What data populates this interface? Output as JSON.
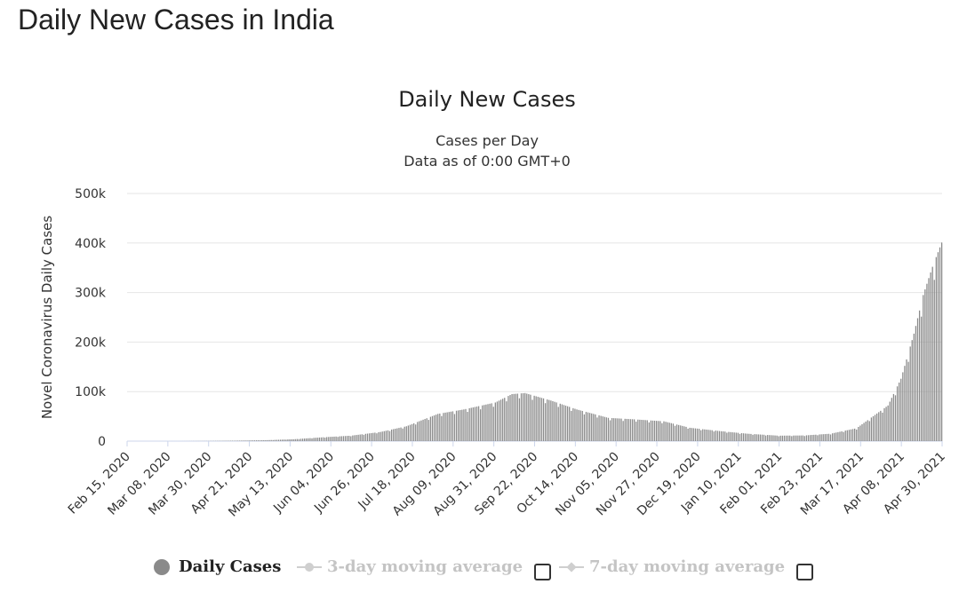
{
  "page_title": "Daily New Cases in India",
  "legend": {
    "daily": "Daily Cases",
    "ma3": "3-day moving average",
    "ma7": "7-day moving average"
  },
  "colors": {
    "bar": "#8a8a8a",
    "grid": "#e6e6e6",
    "muted": "#c4c4c4"
  },
  "chart_data": {
    "type": "bar",
    "title": "Daily New Cases",
    "subtitle": [
      "Cases per Day",
      "Data as of 0:00 GMT+0"
    ],
    "ylabel": "Novel Coronavirus Daily Cases",
    "xlabel": "",
    "ylim": [
      0,
      500000
    ],
    "y_ticks": [
      {
        "value": 0,
        "label": "0"
      },
      {
        "value": 100000,
        "label": "100k"
      },
      {
        "value": 200000,
        "label": "200k"
      },
      {
        "value": 300000,
        "label": "300k"
      },
      {
        "value": 400000,
        "label": "400k"
      },
      {
        "value": 500000,
        "label": "500k"
      }
    ],
    "x_range": [
      "2020-02-15",
      "2021-04-30"
    ],
    "x_ticks": [
      "Feb 15, 2020",
      "Mar 08, 2020",
      "Mar 30, 2020",
      "Apr 21, 2020",
      "May 13, 2020",
      "Jun 04, 2020",
      "Jun 26, 2020",
      "Jul 18, 2020",
      "Aug 09, 2020",
      "Aug 31, 2020",
      "Sep 22, 2020",
      "Oct 14, 2020",
      "Nov 05, 2020",
      "Nov 27, 2020",
      "Dec 19, 2020",
      "Jan 10, 2021",
      "Feb 01, 2021",
      "Feb 23, 2021",
      "Mar 17, 2021",
      "Apr 08, 2021",
      "Apr 30, 2021"
    ],
    "grid": true,
    "legend_position": "bottom",
    "series": [
      {
        "name": "Daily Cases",
        "points": [
          [
            "2020-02-15",
            0
          ],
          [
            "2020-03-01",
            0
          ],
          [
            "2020-03-15",
            50
          ],
          [
            "2020-04-01",
            400
          ],
          [
            "2020-04-15",
            1000
          ],
          [
            "2020-05-01",
            2000
          ],
          [
            "2020-05-15",
            3800
          ],
          [
            "2020-06-01",
            8000
          ],
          [
            "2020-06-15",
            11000
          ],
          [
            "2020-07-01",
            18500
          ],
          [
            "2020-07-15",
            30000
          ],
          [
            "2020-08-01",
            55000
          ],
          [
            "2020-08-15",
            64000
          ],
          [
            "2020-09-01",
            78000
          ],
          [
            "2020-09-10",
            95000
          ],
          [
            "2020-09-17",
            97000
          ],
          [
            "2020-10-01",
            82000
          ],
          [
            "2020-10-15",
            64000
          ],
          [
            "2020-11-01",
            47000
          ],
          [
            "2020-11-15",
            44000
          ],
          [
            "2020-12-01",
            40000
          ],
          [
            "2020-12-15",
            27000
          ],
          [
            "2021-01-01",
            20000
          ],
          [
            "2021-01-15",
            15000
          ],
          [
            "2021-02-01",
            11000
          ],
          [
            "2021-02-15",
            11500
          ],
          [
            "2021-03-01",
            15000
          ],
          [
            "2021-03-15",
            26000
          ],
          [
            "2021-04-01",
            72000
          ],
          [
            "2021-04-08",
            126000
          ],
          [
            "2021-04-15",
            217000
          ],
          [
            "2021-04-20",
            295000
          ],
          [
            "2021-04-25",
            352000
          ],
          [
            "2021-04-30",
            401000
          ]
        ]
      }
    ]
  }
}
